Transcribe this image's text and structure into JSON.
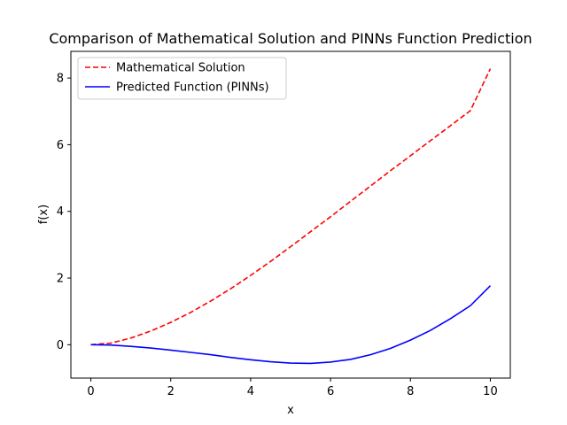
{
  "chart_data": {
    "type": "line",
    "title": "Comparison of Mathematical Solution and PINNs Function Prediction",
    "xlabel": "x",
    "ylabel": "f(x)",
    "xlim": [
      -0.5,
      10.5
    ],
    "ylim": [
      -1.0,
      8.8
    ],
    "xticks": [
      0,
      2,
      4,
      6,
      8,
      10
    ],
    "yticks": [
      0,
      2,
      4,
      6,
      8
    ],
    "grid": false,
    "legend_position": "upper-left",
    "series": [
      {
        "name": "Mathematical Solution",
        "color": "#ff0000",
        "style": "dashed",
        "x": [
          0,
          0.5,
          1,
          1.5,
          2,
          2.5,
          3,
          3.5,
          4,
          4.5,
          5,
          5.5,
          6,
          6.5,
          7,
          7.5,
          8,
          8.5,
          9,
          9.5,
          10
        ],
        "y": [
          0.0,
          0.05,
          0.2,
          0.41,
          0.67,
          0.97,
          1.31,
          1.68,
          2.08,
          2.5,
          2.94,
          3.39,
          3.84,
          4.3,
          4.76,
          5.22,
          5.67,
          6.12,
          6.57,
          7.02,
          8.28
        ]
      },
      {
        "name": "Predicted Function (PINNs)",
        "color": "#0000ff",
        "style": "solid",
        "x": [
          0,
          0.5,
          1,
          1.5,
          2,
          2.5,
          3,
          3.5,
          4,
          4.5,
          5,
          5.5,
          6,
          6.5,
          7,
          7.5,
          8,
          8.5,
          9,
          9.5,
          10
        ],
        "y": [
          0.0,
          -0.01,
          -0.05,
          -0.1,
          -0.16,
          -0.23,
          -0.3,
          -0.38,
          -0.45,
          -0.51,
          -0.55,
          -0.56,
          -0.52,
          -0.44,
          -0.3,
          -0.11,
          0.14,
          0.43,
          0.78,
          1.17,
          1.77
        ]
      }
    ]
  }
}
